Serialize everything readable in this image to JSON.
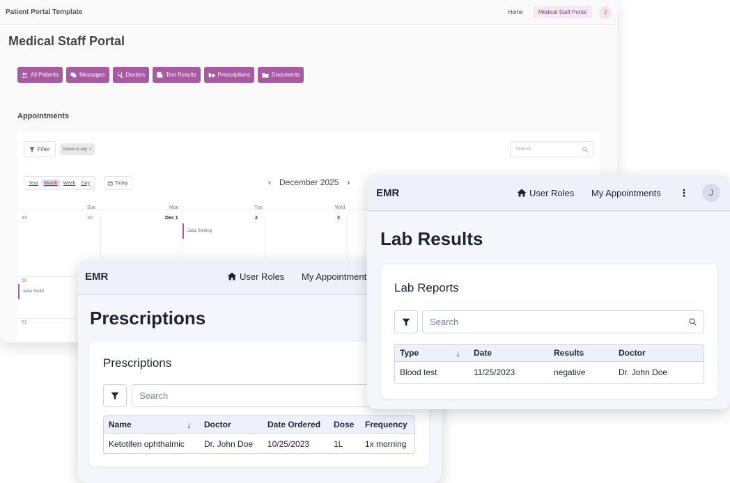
{
  "portal": {
    "brand": "Patient Portal Template",
    "nav": {
      "home": "Home",
      "staff": "Medical Staff Portal",
      "avatar": "J"
    },
    "title": "Medical Staff Portal",
    "buttons": [
      "All Patients",
      "Messages",
      "Doctors",
      "Test Results",
      "Prescriptions",
      "Documents"
    ],
    "section": "Appointments",
    "filter_label": "Filter",
    "filter_chip": "Doctor is any",
    "chip_close": "×",
    "search_placeholder": "Search",
    "views": [
      "Year",
      "Month",
      "Week",
      "Day"
    ],
    "active_view": "Month",
    "today_label": "Today",
    "month_label": "December 2025",
    "prev": "‹",
    "next": "›",
    "day_headers": [
      "Sun",
      "Mon",
      "Tue",
      "Wed"
    ],
    "week_numbers": [
      "49",
      "50",
      "51"
    ],
    "dates": {
      "sun": "30",
      "mon": "Dec 1",
      "tue": "2",
      "wed": "3"
    },
    "events": [
      "Jada Sterling",
      "Alice Smith"
    ]
  },
  "lab_window": {
    "brand": "EMR",
    "nav": {
      "user_roles": "User Roles",
      "appointments": "My Appointments",
      "more": "⋮",
      "avatar": "J"
    },
    "title": "Lab Results",
    "card_title": "Lab Reports",
    "search_placeholder": "Search",
    "columns": [
      "Type",
      "Date",
      "Results",
      "Doctor"
    ],
    "sort_indicator": "↓",
    "rows": [
      {
        "type": "Blood test",
        "date": "11/25/2023",
        "results": "negative",
        "doctor": "Dr. John Doe"
      }
    ]
  },
  "rx_window": {
    "brand": "EMR",
    "nav": {
      "user_roles": "User Roles",
      "appointments": "My Appointments"
    },
    "title": "Prescriptions",
    "card_title": "Prescriptions",
    "search_placeholder": "Search",
    "columns": [
      "Name",
      "Doctor",
      "Date Ordered",
      "Dose",
      "Frequency"
    ],
    "sort_indicator": "↓",
    "rows": [
      {
        "name": "Ketotifen ophthalmic",
        "doctor": "Dr. John Doe",
        "date": "10/25/2023",
        "dose": "1L",
        "frequency": "1x morning"
      }
    ]
  },
  "colors": {
    "accent": "#a85aa3",
    "emr_bar": "#eef0fa",
    "text": "#1e2235"
  }
}
